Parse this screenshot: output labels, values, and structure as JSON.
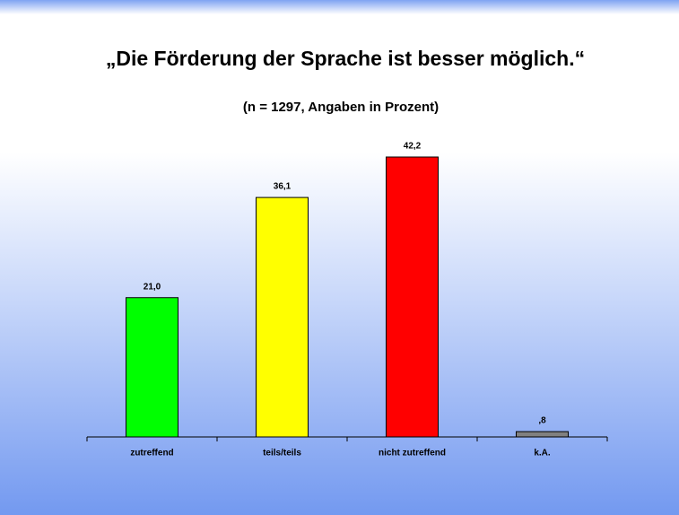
{
  "chart_data": {
    "type": "bar",
    "title": "„Die Förderung der Sprache ist besser möglich.“",
    "subtitle": "(n = 1297, Angaben in Prozent)",
    "categories": [
      "zutreffend",
      "teils/teils",
      "nicht zutreffend",
      "k.A."
    ],
    "values": [
      21.0,
      36.1,
      42.2,
      0.8
    ],
    "value_labels": [
      "21,0",
      "36,1",
      "42,2",
      ",8"
    ],
    "colors": [
      "#00ff00",
      "#ffff00",
      "#ff0000",
      "#808080"
    ]
  }
}
